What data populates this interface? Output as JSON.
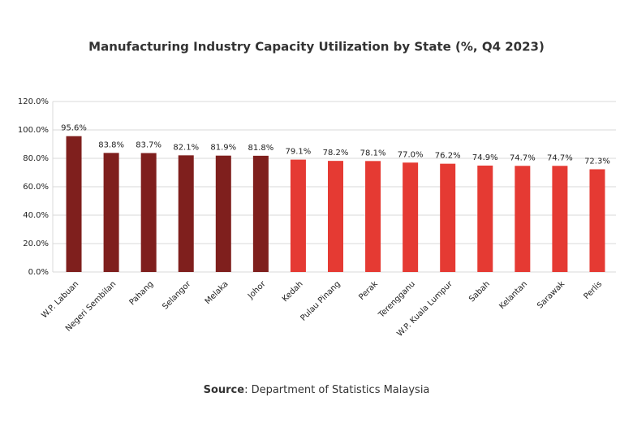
{
  "chart_data": {
    "type": "bar",
    "title": "Manufacturing Industry Capacity Utilization by State (%, Q4 2023)",
    "categories": [
      "W.P. Labuan",
      "Negeri Sembilan",
      "Pahang",
      "Selangor",
      "Melaka",
      "Johor",
      "Kedah",
      "Pulau Pinang",
      "Perak",
      "Terengganu",
      "W.P. Kuala Lumpur",
      "Sabah",
      "Kelantan",
      "Sarawak",
      "Perlis"
    ],
    "values": [
      95.6,
      83.8,
      83.7,
      82.1,
      81.9,
      81.8,
      79.1,
      78.2,
      78.1,
      77.0,
      76.2,
      74.9,
      74.7,
      74.7,
      72.3
    ],
    "value_labels": [
      "95.6%",
      "83.8%",
      "83.7%",
      "82.1%",
      "81.9%",
      "81.8%",
      "79.1%",
      "78.2%",
      "78.1%",
      "77.0%",
      "76.2%",
      "74.9%",
      "74.7%",
      "74.7%",
      "72.3%"
    ],
    "colors": [
      "#7f1f1d",
      "#7f1f1d",
      "#7f1f1d",
      "#7f1f1d",
      "#7f1f1d",
      "#7f1f1d",
      "#e53a33",
      "#e53a33",
      "#e53a33",
      "#e53a33",
      "#e53a33",
      "#e53a33",
      "#e53a33",
      "#e53a33",
      "#e53a33"
    ],
    "ylim": [
      0,
      120
    ],
    "yticks": [
      {
        "value": 0,
        "label": "0.0%"
      },
      {
        "value": 20,
        "label": "20.0%"
      },
      {
        "value": 40,
        "label": "40.0%"
      },
      {
        "value": 60,
        "label": "60.0%"
      },
      {
        "value": 80,
        "label": "80.0%"
      },
      {
        "value": 100,
        "label": "100.0%"
      },
      {
        "value": 120,
        "label": "120.0%"
      }
    ],
    "grid": true,
    "source_label": "Source",
    "source_text": ": Department of Statistics Malaysia"
  }
}
